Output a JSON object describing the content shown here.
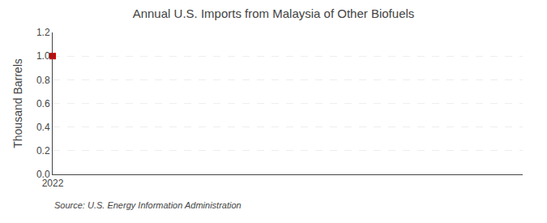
{
  "chart_data": {
    "type": "scatter",
    "title": "Annual U.S. Imports from Malaysia of Other Biofuels",
    "ylabel": "Thousand Barrels",
    "annotations": [
      "Source: U.S. Energy Information Administration"
    ],
    "x": [
      2022
    ],
    "values": [
      1.0
    ],
    "color": "#cc0000",
    "marker": "square",
    "xlim": [
      2022,
      2023
    ],
    "xticks": [
      2022
    ],
    "ylim": [
      0.0,
      1.2
    ],
    "yticks": [
      {
        "value": 0,
        "label": "0.0"
      },
      0.2,
      0.4,
      0.6,
      0.8,
      {
        "value": 1,
        "label": "1.0"
      },
      1.2
    ],
    "grid": true
  }
}
